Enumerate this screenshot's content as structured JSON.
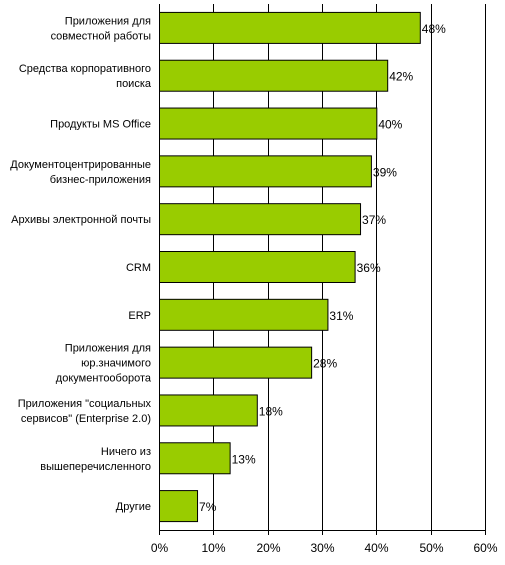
{
  "chart_data": {
    "type": "bar",
    "orientation": "horizontal",
    "categories": [
      [
        "Приложения для",
        "совместной работы"
      ],
      [
        "Средства корпоративного",
        "поиска"
      ],
      [
        "Продукты MS Office"
      ],
      [
        "Документоцентрированные",
        "бизнес-приложения"
      ],
      [
        "Архивы электронной почты"
      ],
      [
        "CRM"
      ],
      [
        "ERP"
      ],
      [
        "Приложения для",
        "юр.значимого",
        "документооборота"
      ],
      [
        "Приложения \"социальных",
        "сервисов\" (Enterprise 2.0)"
      ],
      [
        "Ничего из",
        "вышеперечисленного"
      ],
      [
        "Другие"
      ]
    ],
    "values": [
      48,
      42,
      40,
      39,
      37,
      36,
      31,
      28,
      18,
      13,
      7
    ],
    "value_labels": [
      "48%",
      "42%",
      "40%",
      "39%",
      "37%",
      "36%",
      "31%",
      "28%",
      "18%",
      "13%",
      "7%"
    ],
    "x_ticks": [
      "0%",
      "10%",
      "20%",
      "30%",
      "40%",
      "50%",
      "60%"
    ],
    "xlim": [
      0,
      60
    ],
    "grid": "vertical",
    "bar_color": "#99cc00",
    "bar_border_color": "#000000"
  }
}
